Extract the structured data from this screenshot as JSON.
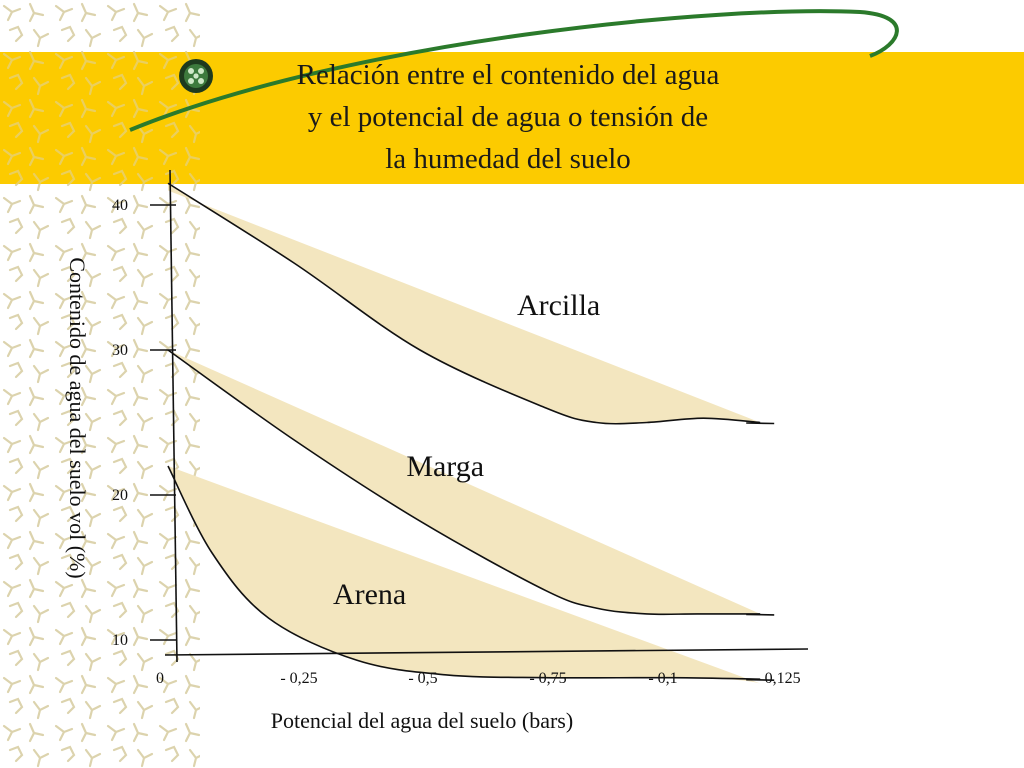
{
  "slide": {
    "title_lines": [
      "Relación entre el contenido del agua",
      "y el potencial de agua o tensión de",
      "la humedad del suelo"
    ],
    "colors": {
      "banner": "#fccb00",
      "band_fill": "#f3e6bf",
      "swoosh": "#2b7a2b",
      "pattern": "#dcd3ad",
      "line": "#111111"
    }
  },
  "chart_data": {
    "type": "area",
    "title": "",
    "ylabel": "Contenido de agua del suelo vol (%)",
    "xlabel": "Potencial del agua del suelo (bars)",
    "ylim": [
      5,
      41
    ],
    "yticks": [
      "40",
      "30",
      "20",
      "10"
    ],
    "ytick_values": [
      40,
      30,
      20,
      10
    ],
    "xticks": [
      "0",
      "- 0,25",
      "- 0,5",
      "- 0,75",
      "- 0,1",
      "- 0,125"
    ],
    "xtick_positions": [
      0,
      1,
      2,
      3,
      4,
      5
    ],
    "series": [
      {
        "name": "Arcilla",
        "upper": [
          [
            0,
            41
          ],
          [
            4.7,
            25
          ]
        ],
        "lower": [
          [
            0,
            41.5
          ],
          [
            1,
            36
          ],
          [
            2,
            30
          ],
          [
            3,
            26
          ],
          [
            3.4,
            25
          ],
          [
            3.8,
            25
          ],
          [
            4.25,
            25.3
          ],
          [
            4.7,
            25
          ]
        ]
      },
      {
        "name": "Marga",
        "upper": [
          [
            0,
            30
          ],
          [
            4.7,
            11.8
          ]
        ],
        "lower": [
          [
            0,
            30
          ],
          [
            1,
            23.8
          ],
          [
            2,
            18.2
          ],
          [
            3,
            13.4
          ],
          [
            3.4,
            12.2
          ],
          [
            3.8,
            11.8
          ],
          [
            4.2,
            11.8
          ],
          [
            4.7,
            11.8
          ]
        ]
      },
      {
        "name": "Arena",
        "upper": [
          [
            0,
            22
          ],
          [
            4.7,
            7
          ]
        ],
        "lower": [
          [
            0,
            22
          ],
          [
            0.35,
            16
          ],
          [
            0.8,
            11.5
          ],
          [
            1.5,
            8.6
          ],
          [
            2.2,
            7.6
          ],
          [
            3,
            7.4
          ],
          [
            4,
            7.4
          ],
          [
            4.7,
            7.3
          ]
        ]
      }
    ]
  }
}
